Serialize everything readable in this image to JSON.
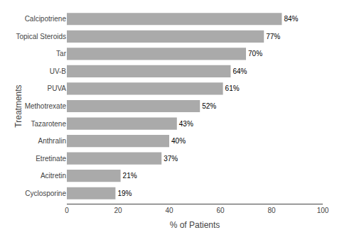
{
  "chart_data": {
    "type": "bar",
    "orientation": "horizontal",
    "xlabel": "% of Patients",
    "ylabel": "Treatments",
    "categories": [
      "Cyclosporine",
      "Acitretin",
      "Etretinate",
      "Anthralin",
      "Tazarotene",
      "Methotrexate",
      "PUVA",
      "UV-B",
      "Tar",
      "Topical Steroids",
      "Calcipotriene"
    ],
    "values": [
      19,
      21,
      37,
      40,
      43,
      52,
      61,
      64,
      70,
      77,
      84
    ],
    "value_labels": [
      "19%",
      "21%",
      "37%",
      "40%",
      "43%",
      "52%",
      "61%",
      "64%",
      "70%",
      "77%",
      "84%"
    ],
    "data_labels": true,
    "color": "#aaaaaa",
    "xlim": [
      0,
      100
    ],
    "xticks": [
      0,
      20,
      40,
      60,
      80,
      100
    ],
    "grid": false
  }
}
